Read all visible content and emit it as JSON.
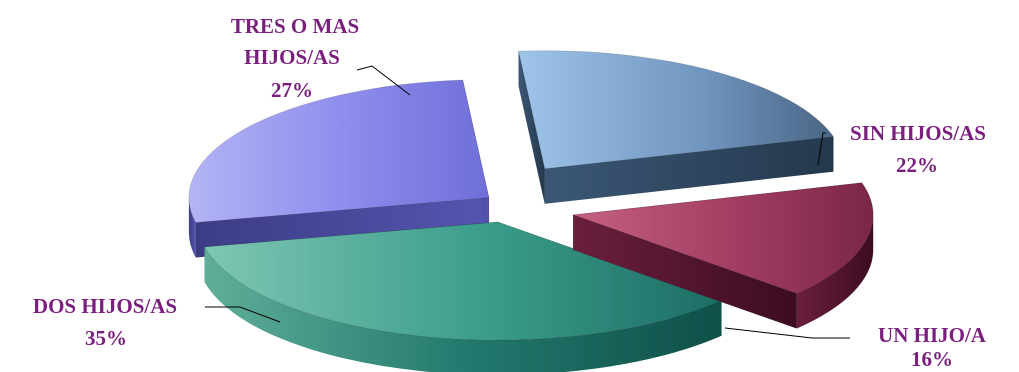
{
  "chart_data": {
    "type": "pie",
    "style": "3d-exploded",
    "title": "",
    "label_color": "#7a1f7e",
    "slices": [
      {
        "label": "SIN HIJOS/AS",
        "value": 22,
        "value_label": "22%",
        "color": "#4d6f9a"
      },
      {
        "label": "UN HIJO/A",
        "value": 16,
        "value_label": "16%",
        "color": "#8c2a52"
      },
      {
        "label": "DOS HIJOS/AS",
        "value": 35,
        "value_label": "35%",
        "color": "#23857a"
      },
      {
        "label": "TRES O MAS HIJOS/AS",
        "value": 27,
        "value_label": "27%",
        "color": "#8a8ae8"
      }
    ]
  }
}
